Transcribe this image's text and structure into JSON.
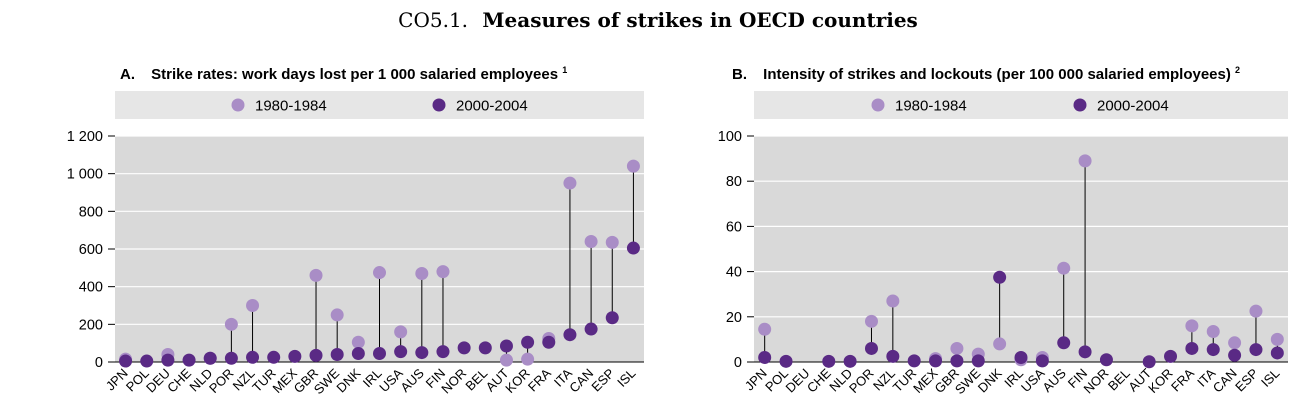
{
  "header": {
    "number": "CO5.1.",
    "title": "Measures of strikes in OECD countries"
  },
  "colors": {
    "light": "#a98dc6",
    "dark": "#5a2a85",
    "plot_bg": "#d9d9d9",
    "legend_bg": "#e6e6e6",
    "stem": "#000000"
  },
  "chart_data": [
    {
      "type": "scatter",
      "panel": "A.",
      "title": "Strike rates: work days lost per 1 000 salaried employees",
      "footnote_mark": "1",
      "categories": [
        "JPN",
        "POL",
        "DEU",
        "CHE",
        "NLD",
        "POR",
        "NZL",
        "TUR",
        "MEX",
        "GBR",
        "SWE",
        "DNK",
        "IRL",
        "USA",
        "AUS",
        "FIN",
        "NOR",
        "BEL",
        "AUT",
        "KOR",
        "FRA",
        "ITA",
        "CAN",
        "ESP",
        "ISL"
      ],
      "series": [
        {
          "name": "1980-1984",
          "color": "#a98dc6",
          "values": [
            15,
            null,
            40,
            null,
            20,
            200,
            300,
            null,
            null,
            460,
            250,
            105,
            475,
            160,
            470,
            480,
            null,
            null,
            10,
            15,
            125,
            950,
            640,
            635,
            1040
          ]
        },
        {
          "name": "2000-2004",
          "color": "#5a2a85",
          "values": [
            5,
            5,
            10,
            10,
            20,
            20,
            25,
            25,
            30,
            35,
            40,
            45,
            45,
            55,
            50,
            55,
            75,
            75,
            85,
            105,
            105,
            145,
            175,
            235,
            605
          ]
        }
      ],
      "ylim": [
        0,
        1200
      ],
      "yticks": [
        0,
        200,
        400,
        600,
        800,
        1000,
        1200
      ],
      "ytick_labels": [
        "0",
        "200",
        "400",
        "600",
        "800",
        "1 000",
        "1 200"
      ],
      "legend": "top"
    },
    {
      "type": "scatter",
      "panel": "B.",
      "title": "Intensity of strikes and lockouts (per 100 000 salaried employees)",
      "footnote_mark": "2",
      "categories": [
        "JPN",
        "POL",
        "DEU",
        "CHE",
        "NLD",
        "POR",
        "NZL",
        "TUR",
        "MEX",
        "GBR",
        "SWE",
        "DNK",
        "IRL",
        "USA",
        "AUS",
        "FIN",
        "NOR",
        "BEL",
        "AUT",
        "KOR",
        "FRA",
        "ITA",
        "CAN",
        "ESP",
        "ISL"
      ],
      "series": [
        {
          "name": "1980-1984",
          "color": "#a98dc6",
          "values": [
            14.5,
            null,
            null,
            null,
            null,
            18,
            27,
            null,
            1.5,
            6,
            3.5,
            8,
            1,
            2,
            41.5,
            89,
            null,
            null,
            null,
            null,
            16,
            13.5,
            8.5,
            22.5,
            10
          ]
        },
        {
          "name": "2000-2004",
          "color": "#5a2a85",
          "values": [
            2,
            0.3,
            null,
            0.3,
            0.3,
            6,
            2.5,
            0.5,
            0.5,
            0.5,
            0.5,
            37.5,
            2,
            0.5,
            8.5,
            4.5,
            1,
            null,
            0.1,
            2.5,
            6,
            5.5,
            3,
            5.5,
            4
          ]
        }
      ],
      "ylim": [
        0,
        100
      ],
      "yticks": [
        0,
        20,
        40,
        60,
        80,
        100
      ],
      "ytick_labels": [
        "0",
        "20",
        "40",
        "60",
        "80",
        "100"
      ],
      "legend": "top"
    }
  ]
}
